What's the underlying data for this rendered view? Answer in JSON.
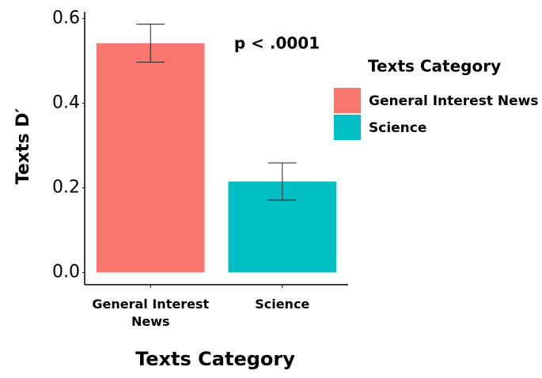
{
  "chart_data": {
    "type": "bar",
    "categories": [
      "General Interest News",
      "Science"
    ],
    "values": [
      0.542,
      0.215
    ],
    "errors": [
      0.045,
      0.044
    ],
    "colors": [
      "#f8766d",
      "#00bfc4"
    ],
    "ylim": [
      -0.029,
      0.616
    ],
    "yticks": [
      {
        "value": 0,
        "label": "0.0"
      },
      0.2,
      0.4,
      0.6
    ],
    "xlabel": "Texts Category",
    "ylabel": "Texts D′",
    "annotation": "p < .0001",
    "legend": {
      "title": "Texts Category",
      "position": "right"
    }
  }
}
